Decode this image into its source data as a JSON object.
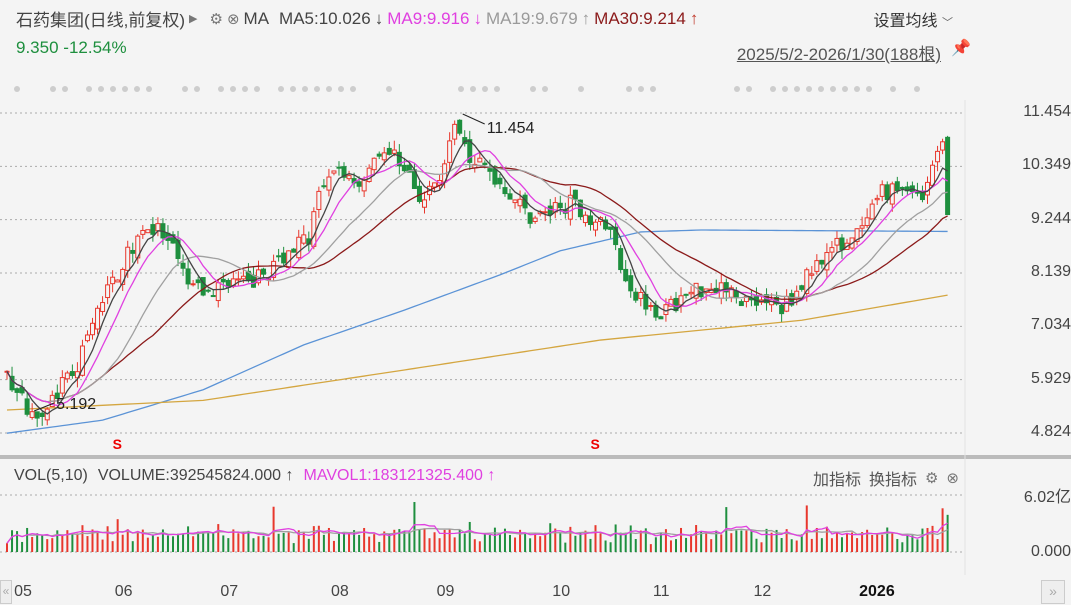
{
  "header": {
    "title": "石药集团(日线,前复权)",
    "play_icon": "triangle-right",
    "ma_label": "MA",
    "ma5": "MA5:10.026",
    "ma5_arrow": "↓",
    "ma9": "MA9:9.916",
    "ma9_arrow": "↓",
    "ma19": "MA19:9.679",
    "ma19_arrow": "↑",
    "ma30": "MA30:9.214",
    "ma30_arrow": "↑",
    "settings_ma": "设置均线",
    "price": "9.350",
    "change": "-12.54%",
    "range": "2025/5/2-2026/1/30(188根)"
  },
  "volume_panel": {
    "title": "VOL(5,10)",
    "volume": "VOLUME:392545824.000",
    "volume_arrow": "↑",
    "mavol": "MAVOL1:183121325.400",
    "mavol_arrow": "↑",
    "add_indicator": "加指标",
    "switch_indicator": "换指标",
    "axis_top": "6.02亿",
    "axis_bottom": "0.000"
  },
  "colors": {
    "up": "#e8372c",
    "down": "#1e8f3e",
    "ma5": "#444444",
    "ma9": "#e040e0",
    "ma19": "#a0a0a0",
    "ma30": "#8b1a1a",
    "long1": "#5b93d6",
    "long2": "#d4a640"
  },
  "chart_data": {
    "type": "candlestick",
    "bars": 188,
    "y_ticks": [
      "11.454",
      "10.349",
      "9.244",
      "8.139",
      "7.034",
      "5.929",
      "4.824"
    ],
    "ylim": [
      4.824,
      11.454
    ],
    "x_ticks": [
      "05",
      "06",
      "07",
      "08",
      "09",
      "10",
      "11",
      "12",
      "2026"
    ],
    "x_tick_index": [
      3,
      23,
      44,
      66,
      87,
      110,
      130,
      150,
      171
    ],
    "close_anchors": [
      [
        0,
        6.0
      ],
      [
        5,
        5.2
      ],
      [
        8,
        5.4
      ],
      [
        14,
        6.2
      ],
      [
        19,
        7.6
      ],
      [
        24,
        8.5
      ],
      [
        27,
        9.1
      ],
      [
        30,
        9.0
      ],
      [
        33,
        8.6
      ],
      [
        36,
        7.9
      ],
      [
        40,
        7.7
      ],
      [
        44,
        8.0
      ],
      [
        48,
        7.9
      ],
      [
        52,
        8.2
      ],
      [
        56,
        8.6
      ],
      [
        60,
        8.9
      ],
      [
        62,
        9.7
      ],
      [
        66,
        10.3
      ],
      [
        70,
        10.0
      ],
      [
        74,
        10.7
      ],
      [
        78,
        10.5
      ],
      [
        80,
        10.2
      ],
      [
        82,
        9.5
      ],
      [
        86,
        10.2
      ],
      [
        88,
        10.9
      ],
      [
        90,
        11.2
      ],
      [
        92,
        10.6
      ],
      [
        96,
        10.2
      ],
      [
        100,
        9.8
      ],
      [
        104,
        9.3
      ],
      [
        108,
        9.4
      ],
      [
        110,
        9.5
      ],
      [
        112,
        9.6
      ],
      [
        116,
        9.3
      ],
      [
        120,
        9.0
      ],
      [
        122,
        8.3
      ],
      [
        125,
        7.7
      ],
      [
        128,
        7.5
      ],
      [
        130,
        7.3
      ],
      [
        134,
        7.6
      ],
      [
        137,
        7.8
      ],
      [
        142,
        7.9
      ],
      [
        145,
        7.6
      ],
      [
        150,
        7.6
      ],
      [
        154,
        7.4
      ],
      [
        158,
        7.9
      ],
      [
        162,
        8.5
      ],
      [
        165,
        8.7
      ],
      [
        170,
        9.0
      ],
      [
        174,
        9.8
      ],
      [
        178,
        9.9
      ],
      [
        182,
        9.8
      ],
      [
        185,
        10.7
      ],
      [
        186,
        10.8
      ],
      [
        187,
        9.35
      ]
    ],
    "long_ma_1_anchors": [
      [
        0,
        4.82
      ],
      [
        19,
        5.09
      ],
      [
        39,
        5.72
      ],
      [
        59,
        6.65
      ],
      [
        79,
        7.37
      ],
      [
        98,
        8.1
      ],
      [
        110,
        8.6
      ],
      [
        126,
        8.99
      ],
      [
        138,
        9.03
      ],
      [
        187,
        9.0
      ]
    ],
    "long_ma_2_anchors": [
      [
        0,
        5.3
      ],
      [
        39,
        5.5
      ],
      [
        79,
        6.13
      ],
      [
        118,
        6.75
      ],
      [
        158,
        7.16
      ],
      [
        187,
        7.68
      ]
    ],
    "high_marker": {
      "value": "11.454",
      "index": 90
    },
    "low_marker": {
      "value": "5.192",
      "index": 5
    },
    "signal_markers": [
      {
        "label": "S",
        "index": 22
      },
      {
        "label": "S",
        "index": 117
      }
    ],
    "last_bar": {
      "open": 10.95,
      "high": 10.98,
      "low": 9.35,
      "close": 9.35,
      "volume": 3.925
    },
    "volume_ylim": [
      0,
      6.02
    ],
    "volume_unit": "亿"
  }
}
